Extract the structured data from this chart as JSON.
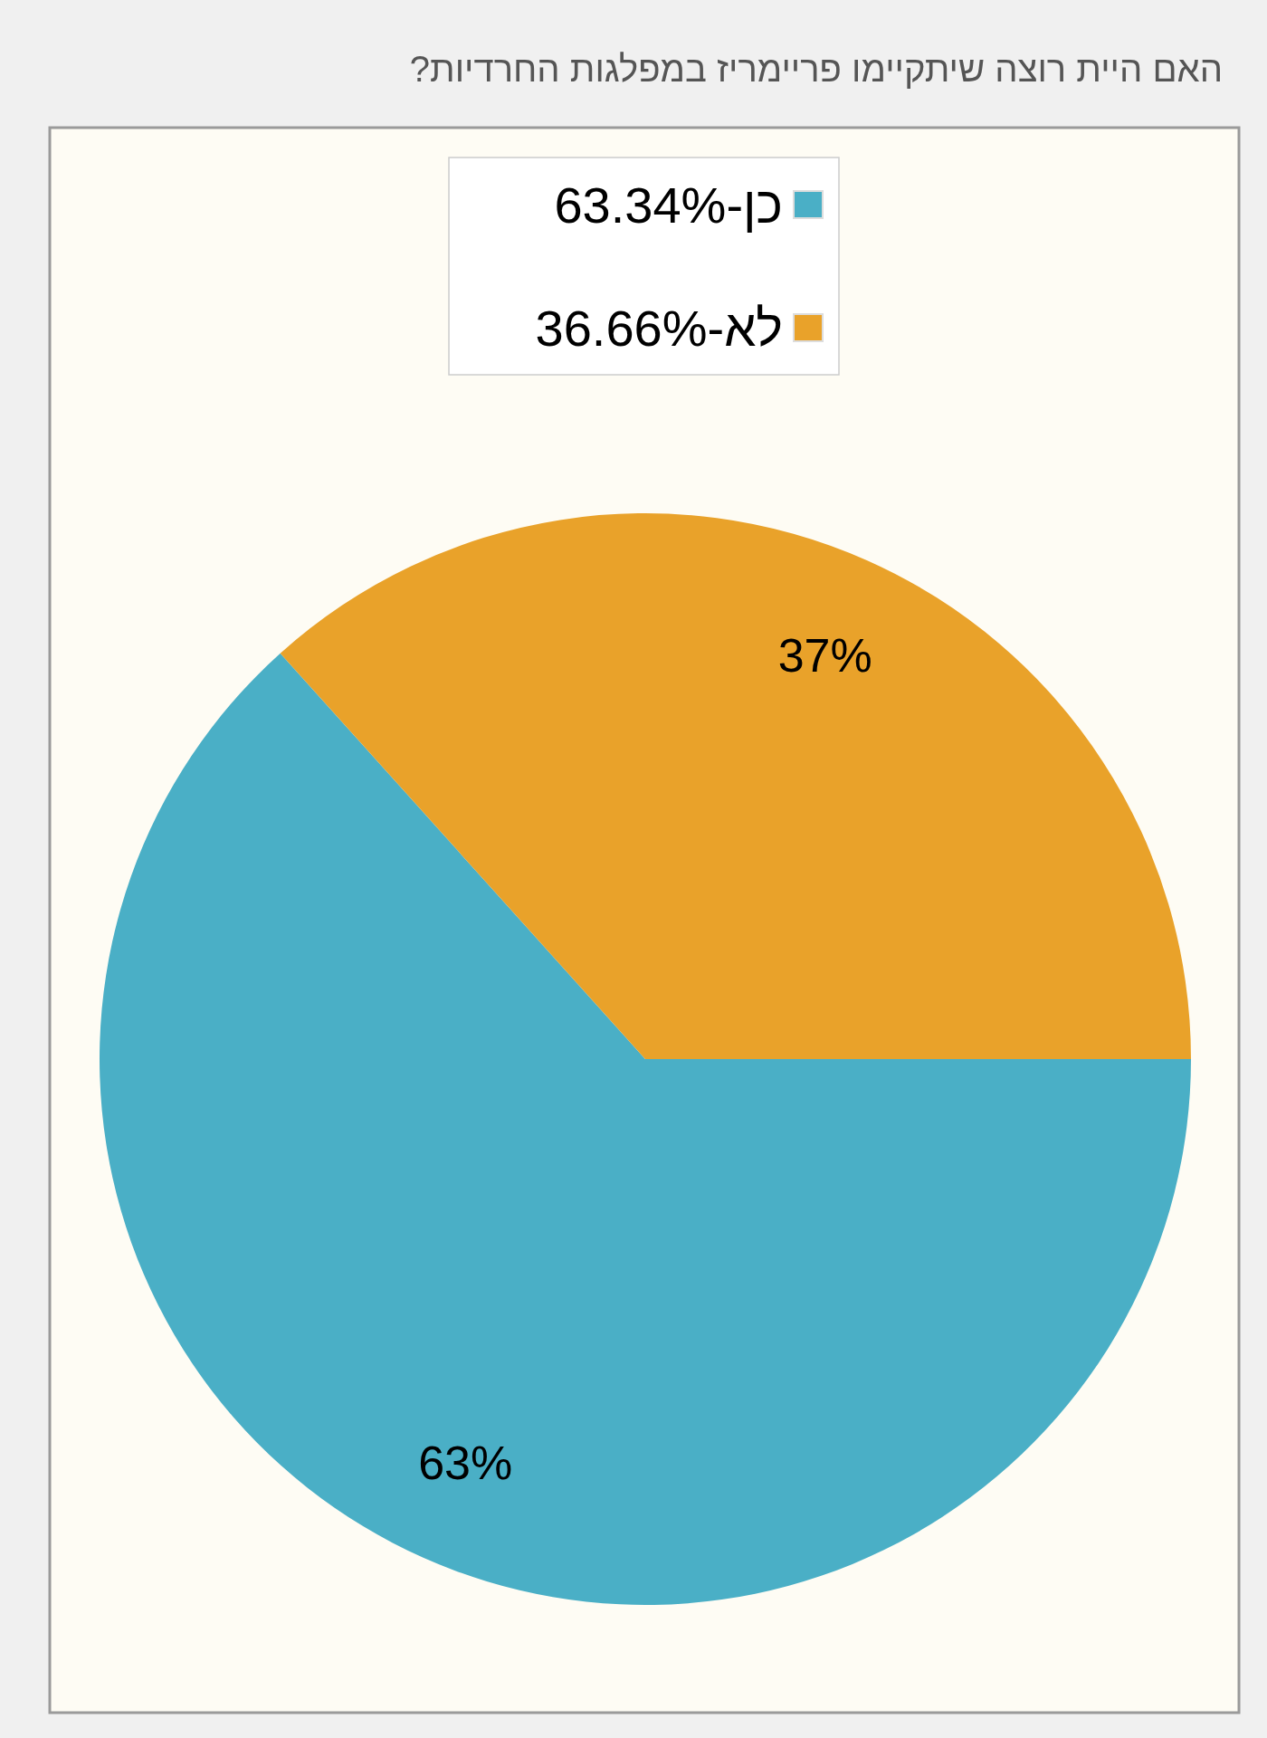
{
  "chart_data": {
    "type": "pie",
    "title": "האם היית רוצה שיתקיימו פריימריז במפלגות החרדיות?",
    "categories": [
      "כן-63.34%",
      "לא-36.66%"
    ],
    "values": [
      63.34,
      36.66
    ],
    "colors": [
      "#4aafc6",
      "#e9a22a"
    ],
    "value_labels": [
      "63%",
      "37%"
    ],
    "legend": "top"
  }
}
